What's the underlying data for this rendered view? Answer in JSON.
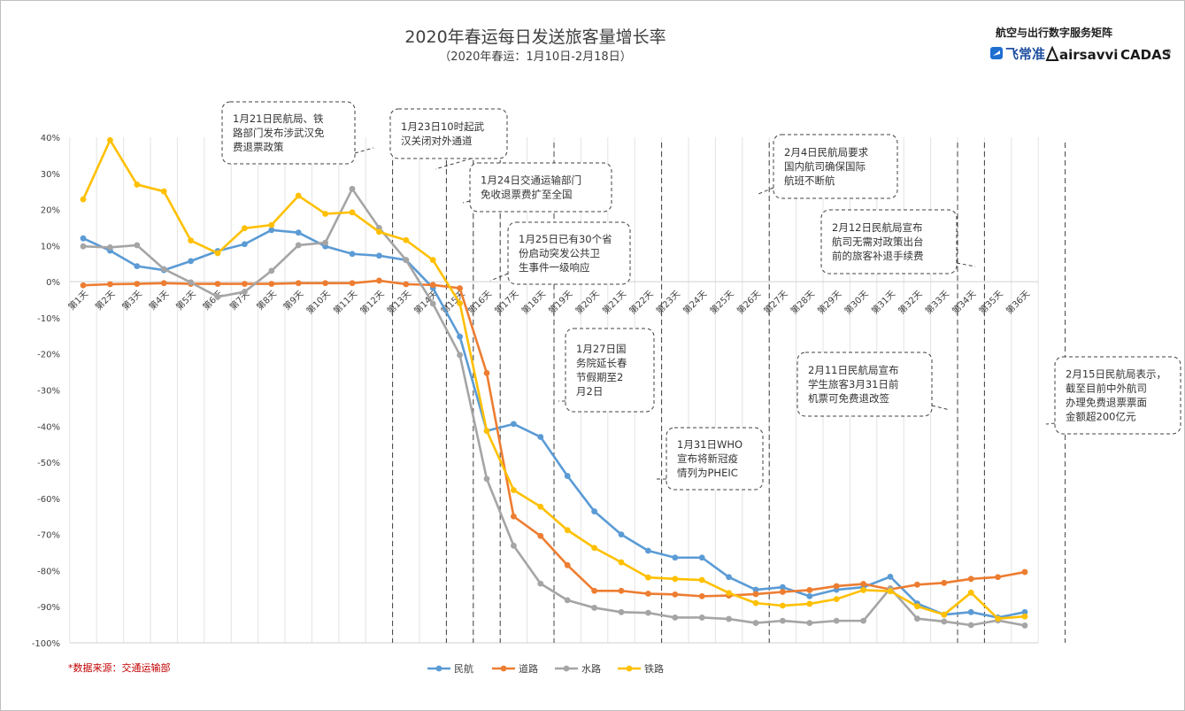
{
  "chart_data": {
    "type": "line",
    "title": "2020年春运每日发送旅客量增长率",
    "subtitle": "（2020年春运：1月10日-2月18日）",
    "categories": [
      "第1天",
      "第2天",
      "第3天",
      "第4天",
      "第5天",
      "第6天",
      "第7天",
      "第8天",
      "第9天",
      "第10天",
      "第11天",
      "第12天",
      "第13天",
      "第14天",
      "第15天",
      "第16天",
      "第17天",
      "第18天",
      "第19天",
      "第20天",
      "第21天",
      "第22天",
      "第23天",
      "第24天",
      "第25天",
      "第26天",
      "第27天",
      "第28天",
      "第29天",
      "第30天",
      "第31天",
      "第32天",
      "第33天",
      "第34天",
      "第35天",
      "第36天"
    ],
    "y_ticks": [
      "40%",
      "30%",
      "20%",
      "10%",
      "0%",
      "-10%",
      "-20%",
      "-30%",
      "-40%",
      "-50%",
      "-60%",
      "-70%",
      "-80%",
      "-90%",
      "-100%"
    ],
    "ylim": [
      -100,
      40
    ],
    "grid": "vertical",
    "legend_position": "bottom",
    "series": [
      {
        "name": "民航",
        "color": "#5b9bd5",
        "values": [
          12,
          8.6,
          4.3,
          3.2,
          5.7,
          8.5,
          10.4,
          14.3,
          13.6,
          9.8,
          7.7,
          7.2,
          6.0,
          -1.7,
          -15.2,
          -41.3,
          -39.4,
          -43.0,
          -53.8,
          -63.6,
          -70.0,
          -74.5,
          -76.4,
          -76.4,
          -81.8,
          -85.3,
          -84.6,
          -87.1,
          -85.3,
          -84.6,
          -81.7,
          -89.1,
          -92.2,
          -91.5,
          -93.0,
          -91.5
        ]
      },
      {
        "name": "道路",
        "color": "#ed7d31",
        "values": [
          -1,
          -0.7,
          -0.6,
          -0.4,
          -0.6,
          -0.6,
          -0.6,
          -0.6,
          -0.4,
          -0.4,
          -0.4,
          0.3,
          -0.7,
          -0.9,
          -1.8,
          -25.3,
          -65.0,
          -70.4,
          -78.5,
          -85.6,
          -85.6,
          -86.4,
          -86.6,
          -87.1,
          -86.9,
          -86.5,
          -85.9,
          -85.4,
          -84.3,
          -83.7,
          -85.2,
          -83.9,
          -83.4,
          -82.3,
          -81.8,
          -80.4
        ]
      },
      {
        "name": "水路",
        "color": "#a5a5a5",
        "values": [
          9.8,
          9.5,
          10.1,
          3.5,
          -0.2,
          -4.2,
          -2.8,
          3.0,
          10.1,
          10.8,
          25.7,
          14.9,
          6.0,
          -6.1,
          -20.3,
          -54.6,
          -73.1,
          -83.6,
          -88.2,
          -90.3,
          -91.5,
          -91.7,
          -93.0,
          -93.0,
          -93.4,
          -94.5,
          -93.9,
          -94.5,
          -93.9,
          -93.9,
          -84.9,
          -93.3,
          -94.1,
          -95.1,
          -93.8,
          -95.2
        ]
      },
      {
        "name": "铁路",
        "color": "#ffc000",
        "values": [
          22.8,
          39.2,
          26.9,
          25.0,
          11.4,
          7.9,
          14.8,
          15.7,
          23.8,
          18.8,
          19.2,
          13.8,
          11.5,
          6.0,
          -6.0,
          -41.3,
          -57.7,
          -62.3,
          -68.8,
          -73.7,
          -77.7,
          -81.9,
          -82.3,
          -82.6,
          -86.2,
          -89.0,
          -89.7,
          -89.2,
          -87.9,
          -85.4,
          -85.7,
          -89.9,
          -92.2,
          -86.1,
          -93.3,
          -92.7
        ]
      }
    ],
    "annotations": [
      {
        "lines": [
          "1月21日民航局、铁",
          "路部门发布涉武汉免",
          "费退票政策"
        ],
        "day": 12
      },
      {
        "lines": [
          "1月23日10时起武",
          "汉关闭对外通道"
        ],
        "day": 14
      },
      {
        "lines": [
          "1月24日交通运输部门",
          "免收退票费扩至全国"
        ],
        "day": 15
      },
      {
        "lines": [
          "1月25日已有30个省",
          "份启动突发公共卫",
          "生事件一级响应"
        ],
        "day": 16
      },
      {
        "lines": [
          "1月27日国",
          "务院延长春",
          "节假期至2",
          "月2日"
        ],
        "day": 18
      },
      {
        "lines": [
          "1月31日WHO",
          "宣布将新冠疫",
          "情列为PHEIC"
        ],
        "day": 22
      },
      {
        "lines": [
          "2月4日民航局要求",
          "国内航司确保国际",
          "航班不断航"
        ],
        "day": 26
      },
      {
        "lines": [
          "2月11日民航局宣布",
          "学生旅客3月31日前",
          "机票可免费退改签"
        ],
        "day": 33
      },
      {
        "lines": [
          "2月12日民航局宣布",
          "航司无需对政策出台",
          "前的旅客补退手续费"
        ],
        "day": 34
      },
      {
        "lines": [
          "2月15日民航局表示，",
          "截至目前中外航司",
          "办理免费退票票面",
          "金额超200亿元"
        ],
        "day": 37
      }
    ]
  },
  "source_note": "*数据来源：交通运输部",
  "branding": {
    "title": "航空与出行数字服务矩阵",
    "logos": [
      "飞常准",
      "airsavvi",
      "CADAS"
    ]
  }
}
